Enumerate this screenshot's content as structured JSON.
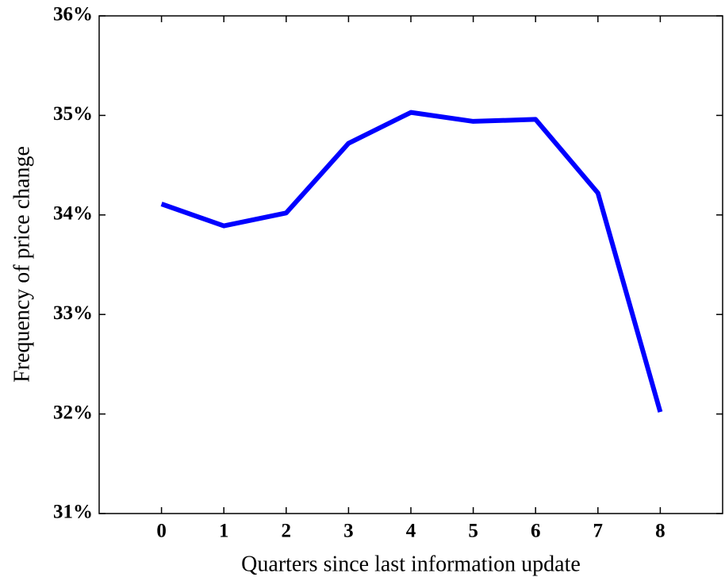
{
  "chart_data": {
    "type": "line",
    "xlabel": "Quarters since last information update",
    "ylabel": "Frequency of price change",
    "x": [
      0,
      1,
      2,
      3,
      4,
      5,
      6,
      7,
      8
    ],
    "series": [
      {
        "color": "#0000ff",
        "values": [
          34.11,
          33.89,
          34.02,
          34.72,
          35.03,
          34.94,
          34.96,
          34.22,
          32.02
        ]
      }
    ],
    "xlim": [
      -1,
      9
    ],
    "xticks": [
      0,
      1,
      2,
      3,
      4,
      5,
      6,
      7,
      8
    ],
    "ylim": [
      31,
      36
    ],
    "yticks": [
      {
        "value": 31,
        "label": "31%"
      },
      {
        "value": 32,
        "label": "32%"
      },
      {
        "value": 33,
        "label": "33%"
      },
      {
        "value": 34,
        "label": "34%"
      },
      {
        "value": 35,
        "label": "35%"
      },
      {
        "value": 36,
        "label": "36%"
      }
    ]
  }
}
